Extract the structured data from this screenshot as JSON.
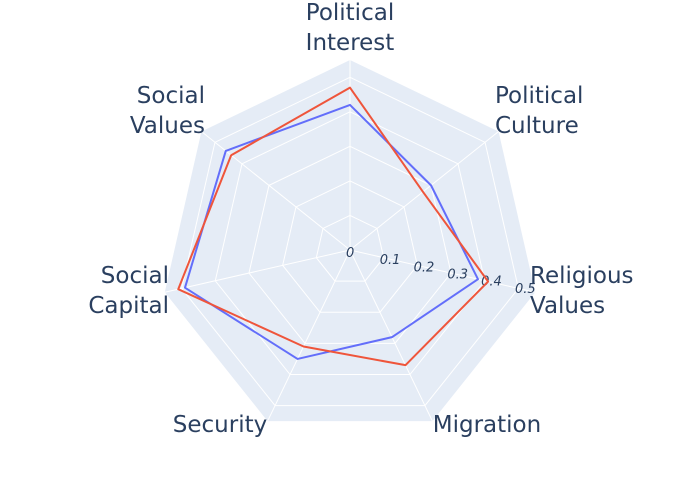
{
  "chart_data": {
    "type": "radar",
    "axes": [
      "Political Interest",
      "Political Culture",
      "Religious Values",
      "Migration",
      "Security",
      "Social Capital",
      "Social Values"
    ],
    "axis_label_lines": [
      [
        "Political",
        "Interest"
      ],
      [
        "Political",
        "Culture"
      ],
      [
        "Religious",
        "Values"
      ],
      [
        "Migration"
      ],
      [
        "Security"
      ],
      [
        "Social",
        "Capital"
      ],
      [
        "Social",
        "Values"
      ]
    ],
    "radial_range": [
      0,
      0.55
    ],
    "radial_ticks": [
      "0",
      "0.1",
      "0.2",
      "0.3",
      "0.4",
      "0.5"
    ],
    "radial_tick_values": [
      0,
      0.1,
      0.2,
      0.3,
      0.4,
      0.5
    ],
    "series": [
      {
        "color": "#636efa",
        "values": [
          0.42,
          0.3,
          0.38,
          0.28,
          0.35,
          0.49,
          0.46
        ]
      },
      {
        "color": "#ef553b",
        "values": [
          0.47,
          0.27,
          0.41,
          0.37,
          0.31,
          0.51,
          0.44
        ]
      }
    ],
    "grid": true,
    "colors": {
      "background": "#e5ecf6",
      "grid": "#ffffff",
      "text": "#2a3f5f"
    }
  }
}
